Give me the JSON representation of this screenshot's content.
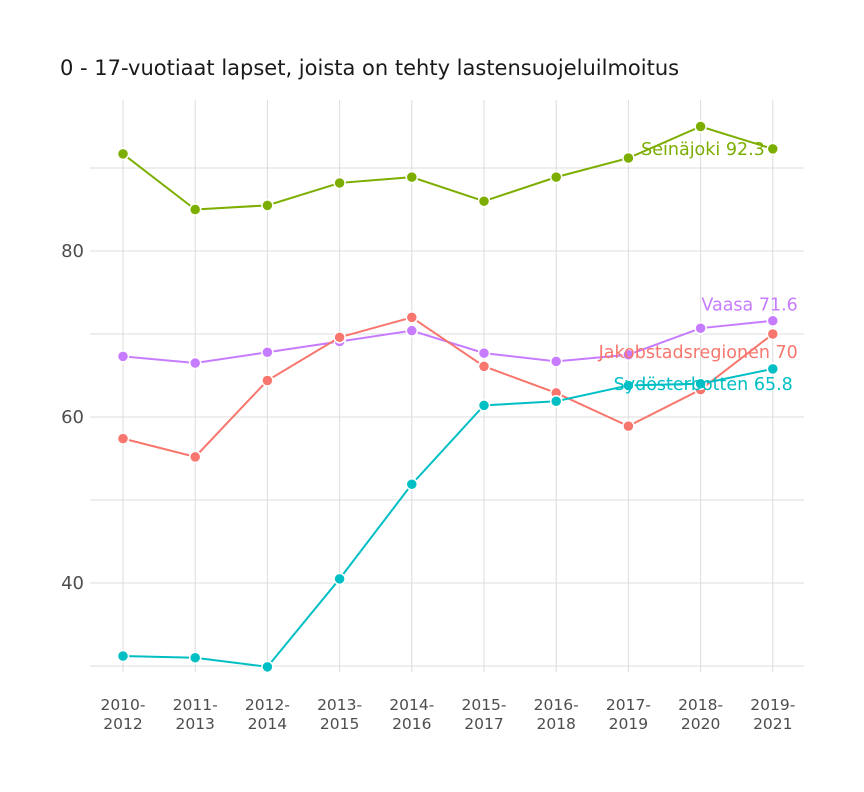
{
  "chart_data": {
    "type": "line",
    "title": "0 - 17-vuotiaat lapset, joista on tehty lastensuojeluilmoitus",
    "xlabel": "",
    "ylabel": "",
    "categories": [
      [
        "2010-",
        "2012"
      ],
      [
        "2011-",
        "2013"
      ],
      [
        "2012-",
        "2014"
      ],
      [
        "2013-",
        "2015"
      ],
      [
        "2014-",
        "2016"
      ],
      [
        "2015-",
        "2017"
      ],
      [
        "2016-",
        "2018"
      ],
      [
        "2017-",
        "2019"
      ],
      [
        "2018-",
        "2020"
      ],
      [
        "2019-",
        "2021"
      ]
    ],
    "ylim": [
      29,
      99
    ],
    "yticks": [
      40,
      60,
      80
    ],
    "ytick_labels": [
      "40",
      "60",
      "80"
    ],
    "grid": true,
    "series": [
      {
        "name": "Seinäjoki",
        "label": "Seinäjoki 92.3",
        "color": "#7cae00",
        "values": [
          91.7,
          85.0,
          85.5,
          88.2,
          88.9,
          86.0,
          88.9,
          91.2,
          95.0,
          92.3
        ]
      },
      {
        "name": "Vaasa",
        "label": "Vaasa 71.6",
        "color": "#c77cff",
        "values": [
          67.3,
          66.5,
          67.8,
          69.1,
          70.4,
          67.7,
          66.7,
          67.5,
          70.7,
          71.6
        ]
      },
      {
        "name": "Jakobstadsregionen",
        "label": "Jakobstadsregionen 70",
        "color": "#f8766d",
        "values": [
          57.4,
          55.2,
          64.4,
          69.6,
          72.0,
          66.1,
          62.9,
          58.9,
          63.3,
          70.0
        ]
      },
      {
        "name": "Sydösterbotten",
        "label": "Sydösterbotten 65.8",
        "color": "#00bfc4",
        "values": [
          31.2,
          31.0,
          29.9,
          40.5,
          51.9,
          61.4,
          61.9,
          63.8,
          64.0,
          65.8
        ]
      }
    ]
  }
}
